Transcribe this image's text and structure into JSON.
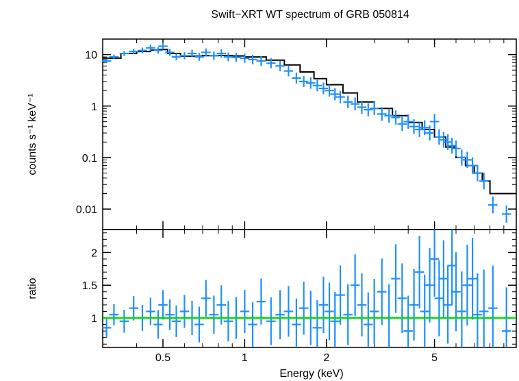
{
  "chart_data": [
    {
      "type": "scatter",
      "title": "Swift−XRT WT spectrum of GRB 050814",
      "xlabel": "",
      "ylabel": "counts s⁻¹ keV⁻¹",
      "xscale": "log",
      "yscale": "log",
      "xlim": [
        0.3,
        10
      ],
      "ylim": [
        0.004,
        20
      ],
      "x_ticks": [
        0.5,
        1,
        2,
        5
      ],
      "y_ticks": [
        {
          "value": 10,
          "label": "10"
        },
        {
          "value": 1,
          "label": "1"
        },
        {
          "value": 0.1,
          "label": "0.1"
        },
        {
          "value": 0.01,
          "label": "0.01"
        }
      ],
      "grid": false,
      "colors": {
        "data": "#1f8fff",
        "model": "#000000"
      },
      "series": [
        {
          "kind": "model-step",
          "x": [
            0.3,
            0.35,
            0.4,
            0.45,
            0.48,
            0.52,
            0.58,
            0.7,
            0.8,
            0.9,
            1.0,
            1.2,
            1.4,
            1.6,
            1.8,
            2.0,
            2.3,
            2.6,
            3.0,
            3.5,
            4.0,
            4.5,
            5.0,
            5.5,
            6.0,
            6.5,
            7.0,
            7.5,
            8.0,
            10.0
          ],
          "y": [
            8.5,
            10.5,
            11.5,
            12.2,
            12.5,
            10.5,
            9.3,
            9.5,
            9.6,
            9.4,
            9.0,
            7.8,
            6.3,
            4.6,
            3.4,
            2.6,
            1.8,
            1.2,
            0.9,
            0.65,
            0.48,
            0.35,
            0.25,
            0.16,
            0.1,
            0.07,
            0.05,
            0.035,
            0.02,
            0.012
          ]
        },
        {
          "kind": "data",
          "x": [
            0.31,
            0.33,
            0.36,
            0.39,
            0.42,
            0.45,
            0.48,
            0.5,
            0.53,
            0.56,
            0.6,
            0.64,
            0.68,
            0.72,
            0.77,
            0.82,
            0.87,
            0.93,
            1.0,
            1.07,
            1.15,
            1.25,
            1.35,
            1.45,
            1.55,
            1.65,
            1.75,
            1.85,
            1.95,
            2.05,
            2.15,
            2.25,
            2.4,
            2.55,
            2.7,
            2.85,
            3.0,
            3.2,
            3.4,
            3.6,
            3.8,
            4.0,
            4.2,
            4.4,
            4.6,
            4.8,
            5.0,
            5.2,
            5.4,
            5.6,
            5.8,
            6.0,
            6.3,
            6.6,
            6.9,
            7.2,
            7.6,
            8.2,
            9.2
          ],
          "y": [
            7.5,
            9.0,
            10.5,
            11.5,
            12.0,
            13.5,
            12.0,
            14.5,
            11.0,
            9.0,
            9.5,
            10.5,
            9.0,
            11.0,
            9.5,
            10.5,
            9.0,
            8.8,
            8.5,
            8.0,
            7.5,
            6.8,
            6.0,
            4.8,
            3.5,
            3.0,
            2.8,
            2.5,
            2.2,
            2.0,
            1.7,
            1.5,
            1.2,
            1.1,
            0.95,
            0.85,
            0.9,
            0.7,
            0.65,
            0.6,
            0.45,
            0.5,
            0.4,
            0.35,
            0.38,
            0.3,
            0.5,
            0.25,
            0.22,
            0.2,
            0.17,
            0.15,
            0.1,
            0.09,
            0.07,
            0.05,
            0.035,
            0.012,
            0.008
          ]
        }
      ]
    },
    {
      "type": "scatter",
      "title": "",
      "xlabel": "Energy (keV)",
      "ylabel": "ratio",
      "xscale": "log",
      "yscale": "linear",
      "xlim": [
        0.3,
        10
      ],
      "ylim": [
        0.55,
        2.35
      ],
      "x_ticks": [
        {
          "value": 0.5,
          "label": "0.5"
        },
        {
          "value": 1,
          "label": "1"
        },
        {
          "value": 2,
          "label": "2"
        },
        {
          "value": 5,
          "label": "5"
        }
      ],
      "y_ticks": [
        {
          "value": 1,
          "label": "1"
        },
        {
          "value": 1.5,
          "label": "1.5"
        },
        {
          "value": 2,
          "label": "2"
        }
      ],
      "reference_line": 1,
      "grid": false,
      "colors": {
        "data": "#1f8fff",
        "reference": "#00dd00"
      },
      "series": [
        {
          "kind": "data",
          "x": [
            0.31,
            0.33,
            0.36,
            0.39,
            0.42,
            0.45,
            0.48,
            0.5,
            0.53,
            0.56,
            0.6,
            0.64,
            0.68,
            0.72,
            0.77,
            0.82,
            0.87,
            0.93,
            1.0,
            1.07,
            1.15,
            1.25,
            1.35,
            1.45,
            1.55,
            1.65,
            1.75,
            1.85,
            1.95,
            2.05,
            2.15,
            2.25,
            2.4,
            2.55,
            2.7,
            2.85,
            3.0,
            3.2,
            3.4,
            3.6,
            3.8,
            4.0,
            4.2,
            4.4,
            4.6,
            4.8,
            5.0,
            5.2,
            5.4,
            5.6,
            5.8,
            6.0,
            6.3,
            6.6,
            6.9,
            7.2,
            7.6,
            8.2,
            9.2
          ],
          "y": [
            0.85,
            1.05,
            0.95,
            1.15,
            1.0,
            1.1,
            0.9,
            1.2,
            1.05,
            0.95,
            1.1,
            1.0,
            0.9,
            1.3,
            1.05,
            1.2,
            0.95,
            1.0,
            1.1,
            0.9,
            1.25,
            0.95,
            1.05,
            1.1,
            0.9,
            1.15,
            1.0,
            0.85,
            1.2,
            1.1,
            0.95,
            1.35,
            1.05,
            1.5,
            1.2,
            0.9,
            1.1,
            1.4,
            1.0,
            1.6,
            1.3,
            0.8,
            1.2,
            1.7,
            1.1,
            1.5,
            1.9,
            1.3,
            1.6,
            1.2,
            1.8,
            1.4,
            1.1,
            1.5,
            1.6,
            1.05,
            1.1,
            1.15,
            0.8
          ]
        }
      ]
    }
  ]
}
